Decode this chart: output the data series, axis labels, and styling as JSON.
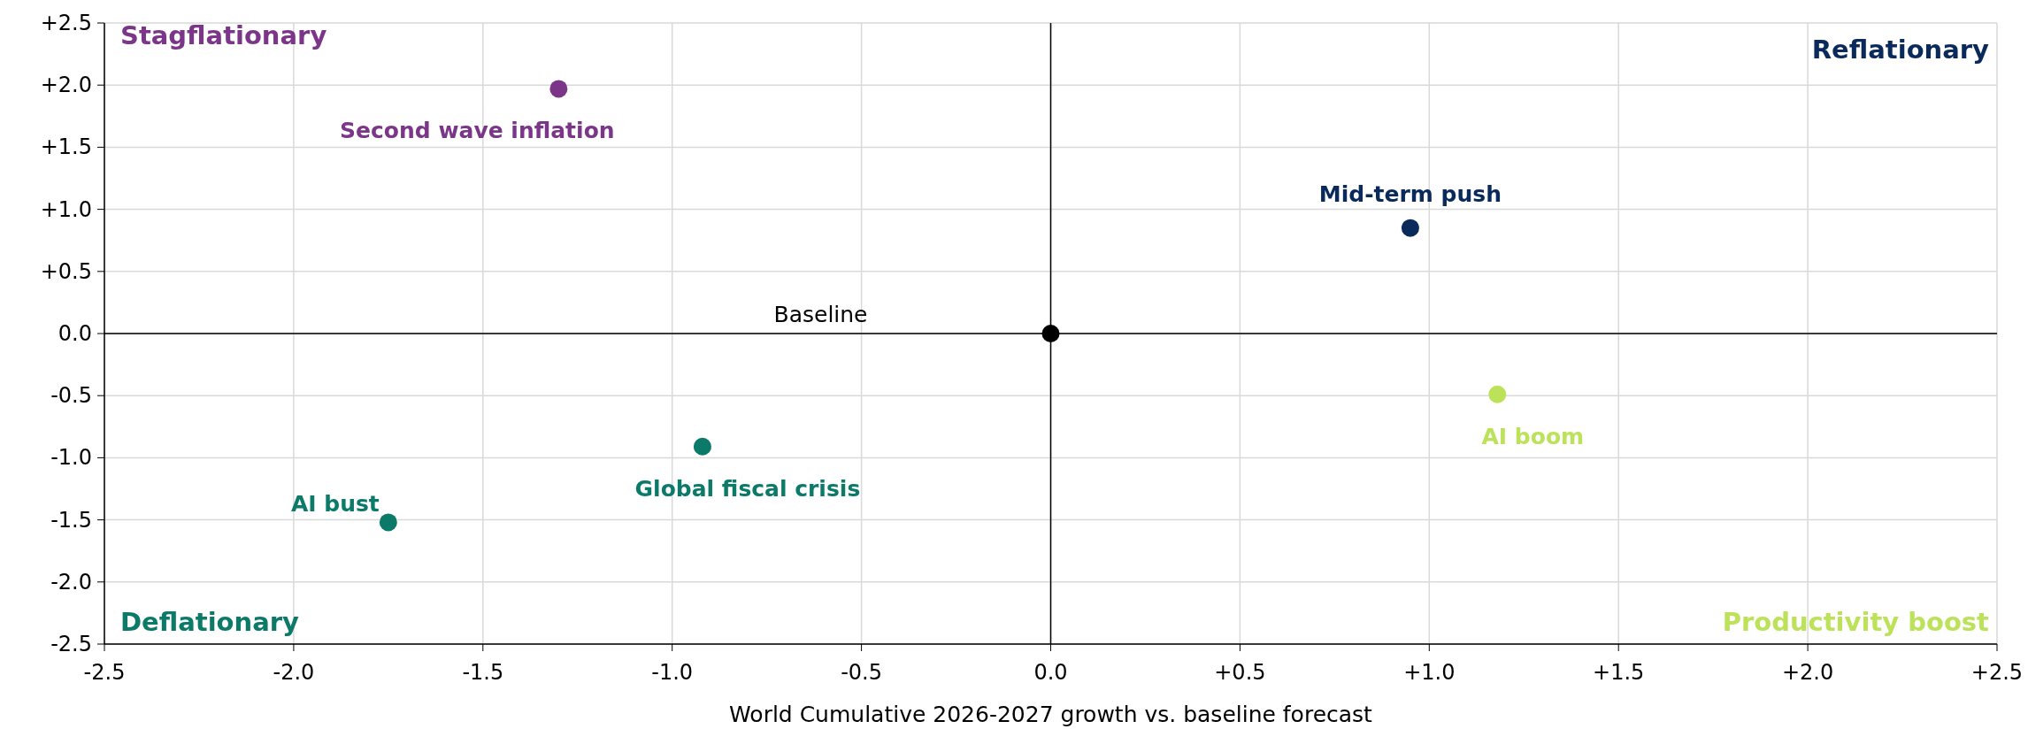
{
  "chart_data": {
    "type": "scatter",
    "xlabel": "World Cumulative 2026-2027 growth vs. baseline forecast",
    "xlim": [
      -2.5,
      2.5
    ],
    "xticks": [
      -2.5,
      {
        "value": -2,
        "label": "-2.0"
      },
      -1.5,
      {
        "value": -1,
        "label": "-1.0"
      },
      -0.5,
      {
        "value": 0,
        "label": "0.0"
      },
      {
        "value": 0.5,
        "label": "+0.5"
      },
      {
        "value": 1,
        "label": "+1.0"
      },
      {
        "value": 1.5,
        "label": "+1.5"
      },
      {
        "value": 2,
        "label": "+2.0"
      },
      {
        "value": 2.5,
        "label": "+2.5"
      }
    ],
    "ylim": [
      -2.5,
      2.5
    ],
    "yticks": [
      -2.5,
      {
        "value": -2,
        "label": "-2.0"
      },
      -1.5,
      {
        "value": -1,
        "label": "-1.0"
      },
      -0.5,
      {
        "value": 0,
        "label": "0.0"
      },
      {
        "value": 0.5,
        "label": "+0.5"
      },
      {
        "value": 1,
        "label": "+1.0"
      },
      {
        "value": 1.5,
        "label": "+1.5"
      },
      {
        "value": 2,
        "label": "+2.0"
      },
      {
        "value": 2.5,
        "label": "+2.5"
      }
    ],
    "grid": true,
    "marker": "circle",
    "series": [
      {
        "name": "Baseline",
        "color": "#000000",
        "x": [
          0
        ],
        "values": [
          0
        ]
      },
      {
        "name": "Second wave inflation",
        "color": "#7b3589",
        "x": [
          -1.3
        ],
        "values": [
          1.97
        ]
      },
      {
        "name": "Mid-term push",
        "color": "#0b2a5c",
        "x": [
          0.95
        ],
        "values": [
          0.85
        ]
      },
      {
        "name": "AI boom",
        "color": "#bce25a",
        "x": [
          1.18
        ],
        "values": [
          -0.49
        ]
      },
      {
        "name": "Global fiscal crisis",
        "color": "#0b7a68",
        "x": [
          -0.92
        ],
        "values": [
          -0.91
        ]
      },
      {
        "name": "AI bust",
        "color": "#0b7a68",
        "x": [
          -1.75
        ],
        "values": [
          -1.52
        ]
      }
    ],
    "annotations": [
      "Stagflationary",
      "Reflationary",
      "Deflationary",
      "Productivity boost"
    ]
  }
}
